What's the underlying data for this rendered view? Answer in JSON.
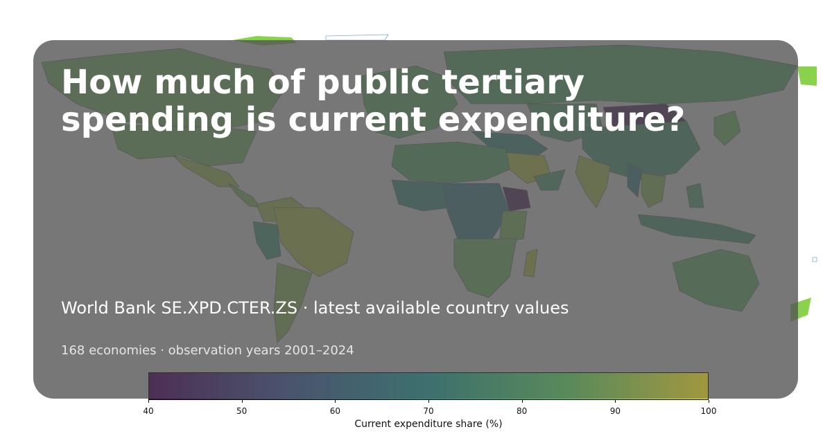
{
  "title": "How much of public tertiary spending is current expenditure?",
  "subtitle": "World Bank SE.XPD.CTER.ZS · latest available country values",
  "meta": "168 economies · observation years 2001–2024",
  "colorbar": {
    "label": "Current expenditure share (%)",
    "range": [
      40,
      100
    ],
    "ticks": [
      "40",
      "50",
      "60",
      "70",
      "80",
      "90",
      "100"
    ],
    "colormap": "viridis"
  },
  "colors": {
    "overlay": "#555555",
    "title_text": "#ffffff",
    "low": "#440154",
    "mid": "#21918c",
    "high": "#fde725",
    "no_data_land": "#e0e0e0"
  },
  "chart_data": {
    "type": "choropleth",
    "title": "How much of public tertiary spending is current expenditure?",
    "value_label": "Current expenditure share (%)",
    "vmin": 40,
    "vmax": 100,
    "regions_approx": [
      {
        "name": "Canada",
        "value": 87
      },
      {
        "name": "United States",
        "value": 87
      },
      {
        "name": "Mexico",
        "value": 92
      },
      {
        "name": "Brazil",
        "value": 94
      },
      {
        "name": "Peru",
        "value": 75
      },
      {
        "name": "Argentina",
        "value": 90
      },
      {
        "name": "Russia",
        "value": 82
      },
      {
        "name": "Mongolia",
        "value": 42
      },
      {
        "name": "China",
        "value": 76
      },
      {
        "name": "India",
        "value": 93
      },
      {
        "name": "Saudi Arabia",
        "value": 96
      },
      {
        "name": "Ethiopia",
        "value": 41
      },
      {
        "name": "Myanmar",
        "value": 68
      },
      {
        "name": "Indonesia",
        "value": 76
      },
      {
        "name": "Australia",
        "value": 84
      },
      {
        "name": "South Africa",
        "value": 88
      },
      {
        "name": "Madagascar",
        "value": 95
      }
    ]
  }
}
